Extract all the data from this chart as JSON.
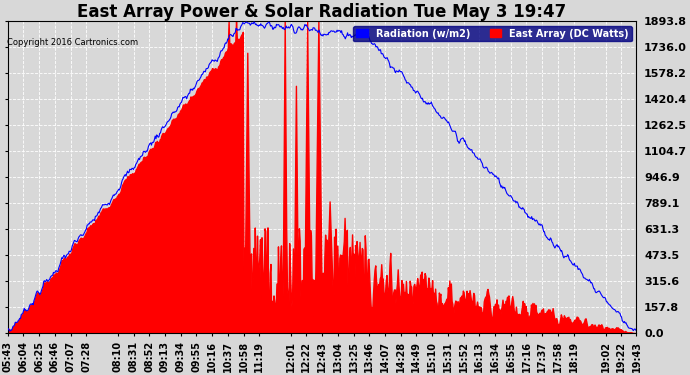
{
  "title": "East Array Power & Solar Radiation Tue May 3 19:47",
  "copyright": "Copyright 2016 Cartronics.com",
  "legend_labels": [
    "Radiation (w/m2)",
    "East Array (DC Watts)"
  ],
  "legend_colors": [
    "blue",
    "red"
  ],
  "ymax": 1893.8,
  "ymin": 0.0,
  "yticks": [
    0.0,
    157.8,
    315.6,
    473.5,
    631.3,
    789.1,
    946.9,
    1104.7,
    1262.5,
    1420.4,
    1578.2,
    1736.0,
    1893.8
  ],
  "ytick_labels": [
    "0.0",
    "157.8",
    "315.6",
    "473.5",
    "631.3",
    "789.1",
    "946.9",
    "1104.7",
    "1262.5",
    "1420.4",
    "1578.2",
    "1736.0",
    "1893.8"
  ],
  "background_color": "#d8d8d8",
  "plot_bg_color": "#d8d8d8",
  "grid_color": "white",
  "title_fontsize": 12,
  "axis_label_fontsize": 7,
  "ytick_fontsize": 8,
  "xtick_labels": [
    "05:43",
    "06:04",
    "06:25",
    "06:46",
    "07:07",
    "07:28",
    "08:10",
    "08:31",
    "08:52",
    "09:13",
    "09:34",
    "09:55",
    "10:16",
    "10:37",
    "10:58",
    "11:19",
    "12:01",
    "12:22",
    "12:43",
    "13:04",
    "13:25",
    "13:46",
    "14:07",
    "14:28",
    "14:49",
    "15:10",
    "15:31",
    "15:52",
    "16:13",
    "16:34",
    "16:55",
    "17:16",
    "17:37",
    "17:58",
    "18:19",
    "19:02",
    "19:22",
    "19:43"
  ]
}
